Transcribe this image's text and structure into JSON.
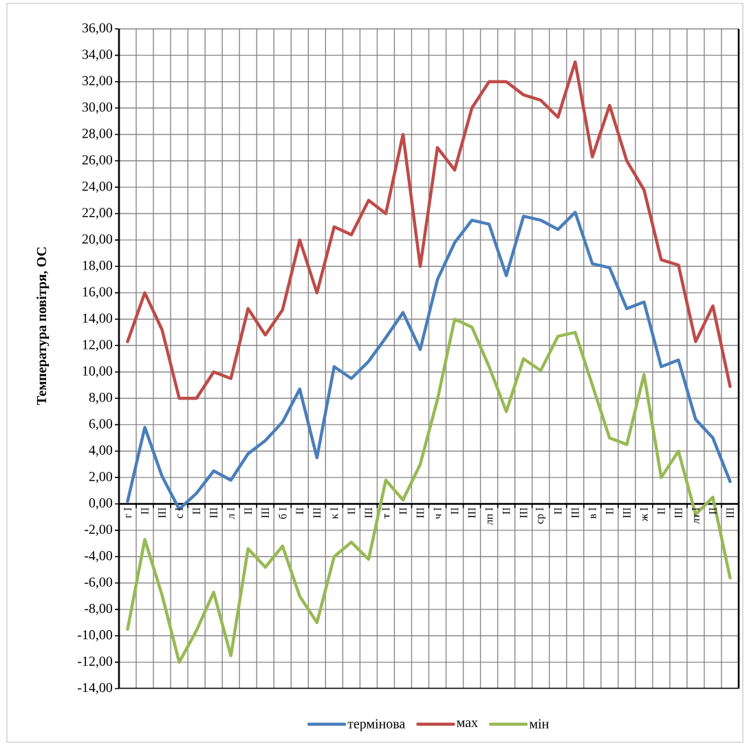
{
  "chart_data": {
    "type": "line",
    "ylabel": "Температура повітря, ОС",
    "categories": [
      "г I",
      "II",
      "III",
      "с I",
      "II",
      "III",
      "л I",
      "II",
      "III",
      "б I",
      "II",
      "III",
      "к I",
      "II",
      "III",
      "т I",
      "II",
      "III",
      "ч I",
      "II",
      "III",
      "лп I",
      "II",
      "III",
      "ср I",
      "II",
      "III",
      "в I",
      "II",
      "III",
      "ж I",
      "II",
      "III",
      "лт I",
      "II",
      "III"
    ],
    "series": [
      {
        "name": "термінова",
        "color": "#4a7ebb",
        "values": [
          0.2,
          5.8,
          2.1,
          -0.4,
          0.8,
          2.5,
          1.8,
          3.8,
          4.8,
          6.2,
          8.7,
          3.5,
          10.4,
          9.5,
          10.8,
          12.6,
          14.5,
          11.7,
          17.0,
          19.8,
          21.5,
          21.2,
          17.3,
          21.8,
          21.5,
          20.8,
          22.1,
          18.2,
          17.9,
          14.8,
          15.3,
          10.4,
          10.9,
          6.4,
          5.0,
          1.7
        ]
      },
      {
        "name": "мах",
        "color": "#be4b48",
        "values": [
          12.3,
          16.0,
          13.2,
          8.0,
          8.0,
          10.0,
          9.5,
          14.8,
          12.8,
          14.7,
          20.0,
          16.0,
          21.0,
          20.4,
          23.0,
          22.0,
          28.0,
          18.0,
          27.0,
          25.3,
          30.0,
          32.0,
          32.0,
          31.0,
          30.6,
          29.3,
          33.5,
          26.3,
          30.2,
          26.0,
          23.8,
          18.5,
          18.1,
          12.3,
          15.0,
          8.9
        ]
      },
      {
        "name": "мін",
        "color": "#98b954",
        "values": [
          -9.5,
          -2.7,
          -6.9,
          -12.0,
          -9.6,
          -6.7,
          -11.5,
          -3.4,
          -4.8,
          -3.2,
          -7.0,
          -9.0,
          -4.0,
          -2.9,
          -4.2,
          1.8,
          0.3,
          3.0,
          7.9,
          14.0,
          13.4,
          10.4,
          7.0,
          11.0,
          10.1,
          12.7,
          13.0,
          9.0,
          5.0,
          4.5,
          9.8,
          2.0,
          4.0,
          -0.8,
          0.5,
          -5.6
        ]
      }
    ],
    "ylim": [
      -14,
      36
    ],
    "yticks": [
      {
        "value": -14,
        "label": "-14,00"
      },
      {
        "value": -12,
        "label": "-12,00"
      },
      {
        "value": -10,
        "label": "-10,00"
      },
      {
        "value": -8,
        "label": "-8,00"
      },
      {
        "value": -6,
        "label": "-6,00"
      },
      {
        "value": -4,
        "label": "-4,00"
      },
      {
        "value": -2,
        "label": "-2,00"
      },
      {
        "value": 0,
        "label": "0,00"
      },
      {
        "value": 2,
        "label": "2,00"
      },
      {
        "value": 4,
        "label": "4,00"
      },
      {
        "value": 6,
        "label": "6,00"
      },
      {
        "value": 8,
        "label": "8,00"
      },
      {
        "value": 10,
        "label": "10,00"
      },
      {
        "value": 12,
        "label": "12,00"
      },
      {
        "value": 14,
        "label": "14,00"
      },
      {
        "value": 16,
        "label": "16,00"
      },
      {
        "value": 18,
        "label": "18,00"
      },
      {
        "value": 20,
        "label": "20,00"
      },
      {
        "value": 22,
        "label": "22,00"
      },
      {
        "value": 24,
        "label": "24,00"
      },
      {
        "value": 26,
        "label": "26,00"
      },
      {
        "value": 28,
        "label": "28,00"
      },
      {
        "value": 30,
        "label": "30,00"
      },
      {
        "value": 32,
        "label": "32,00"
      },
      {
        "value": 34,
        "label": "34,00"
      },
      {
        "value": 36,
        "label": "36,00"
      }
    ],
    "grid": true,
    "legend": "bottom"
  }
}
